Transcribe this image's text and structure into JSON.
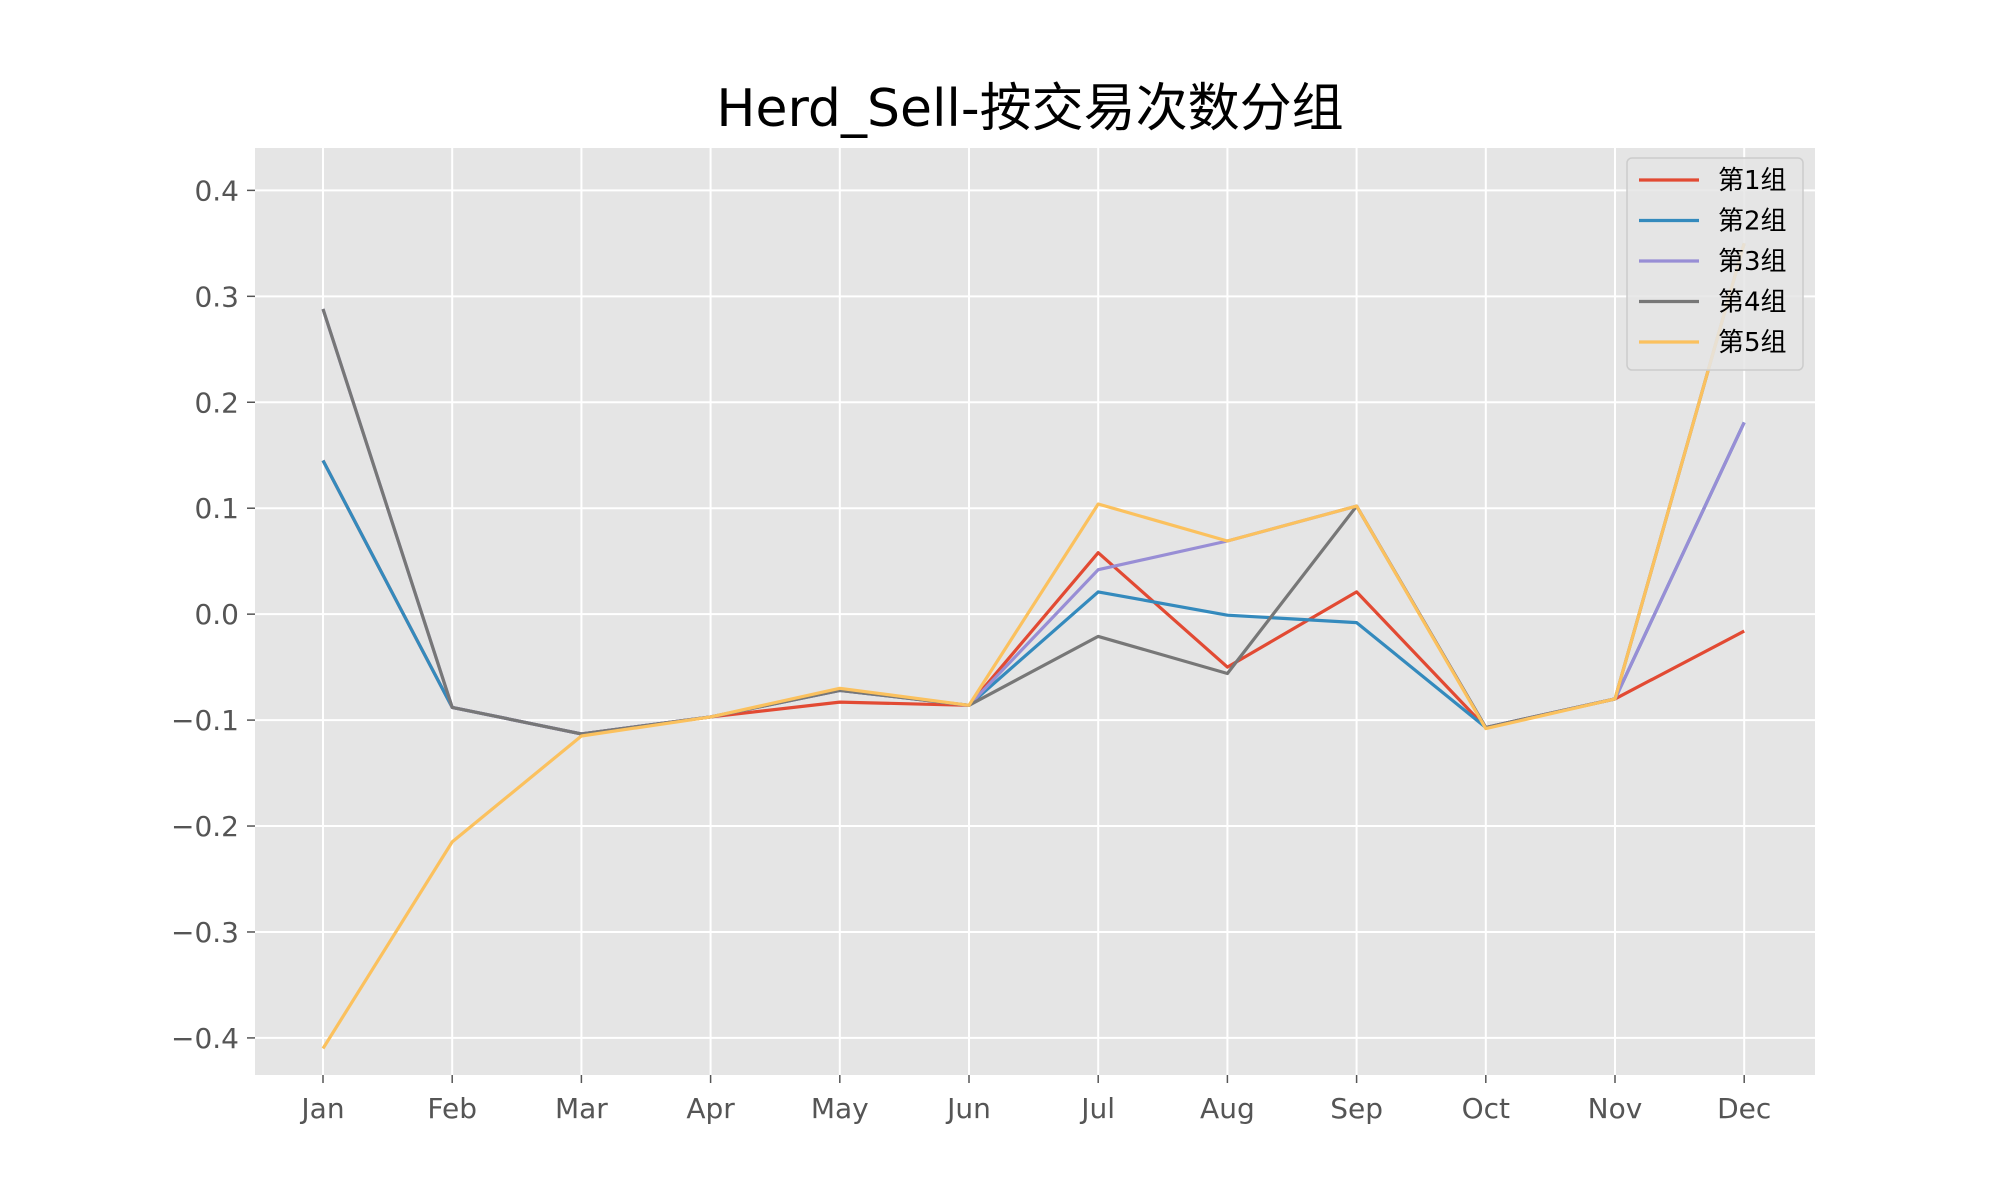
{
  "chart_data": {
    "type": "line",
    "title": "Herd_Sell-按交易次数分组",
    "xlabel": "",
    "ylabel": "",
    "categories": [
      "Jan",
      "Feb",
      "Mar",
      "Apr",
      "May",
      "Jun",
      "Jul",
      "Aug",
      "Sep",
      "Oct",
      "Nov",
      "Dec"
    ],
    "ylim": [
      -0.435,
      0.44
    ],
    "yticks": [
      -0.4,
      -0.3,
      -0.2,
      -0.1,
      0.0,
      0.1,
      0.2,
      0.3,
      0.4
    ],
    "ytick_labels": [
      "−0.4",
      "−0.3",
      "−0.2",
      "−0.1",
      "0.0",
      "0.1",
      "0.2",
      "0.3",
      "0.4"
    ],
    "grid": true,
    "legend_position": "top-right",
    "background": "#e5e5e5",
    "series": [
      {
        "name": "第1组",
        "color": "#e24a33",
        "values": [
          0.145,
          -0.088,
          -0.113,
          -0.097,
          -0.083,
          -0.086,
          0.058,
          -0.05,
          0.021,
          -0.107,
          -0.08,
          -0.016
        ]
      },
      {
        "name": "第2组",
        "color": "#348abd",
        "values": [
          0.145,
          -0.088,
          -0.113,
          -0.097,
          -0.072,
          -0.086,
          0.021,
          -0.001,
          -0.008,
          -0.107,
          -0.08,
          0.181
        ]
      },
      {
        "name": "第3组",
        "color": "#988ed5",
        "values": [
          0.288,
          -0.088,
          -0.113,
          -0.097,
          -0.072,
          -0.086,
          0.042,
          0.069,
          0.102,
          -0.107,
          -0.08,
          0.181
        ]
      },
      {
        "name": "第4组",
        "color": "#777777",
        "values": [
          0.288,
          -0.088,
          -0.113,
          -0.097,
          -0.072,
          -0.086,
          -0.021,
          -0.056,
          0.102,
          -0.107,
          -0.08,
          0.35
        ]
      },
      {
        "name": "第5组",
        "color": "#fbc15e",
        "values": [
          -0.41,
          -0.215,
          -0.115,
          -0.097,
          -0.07,
          -0.086,
          0.104,
          0.069,
          0.102,
          -0.108,
          -0.08,
          0.35
        ]
      }
    ]
  }
}
